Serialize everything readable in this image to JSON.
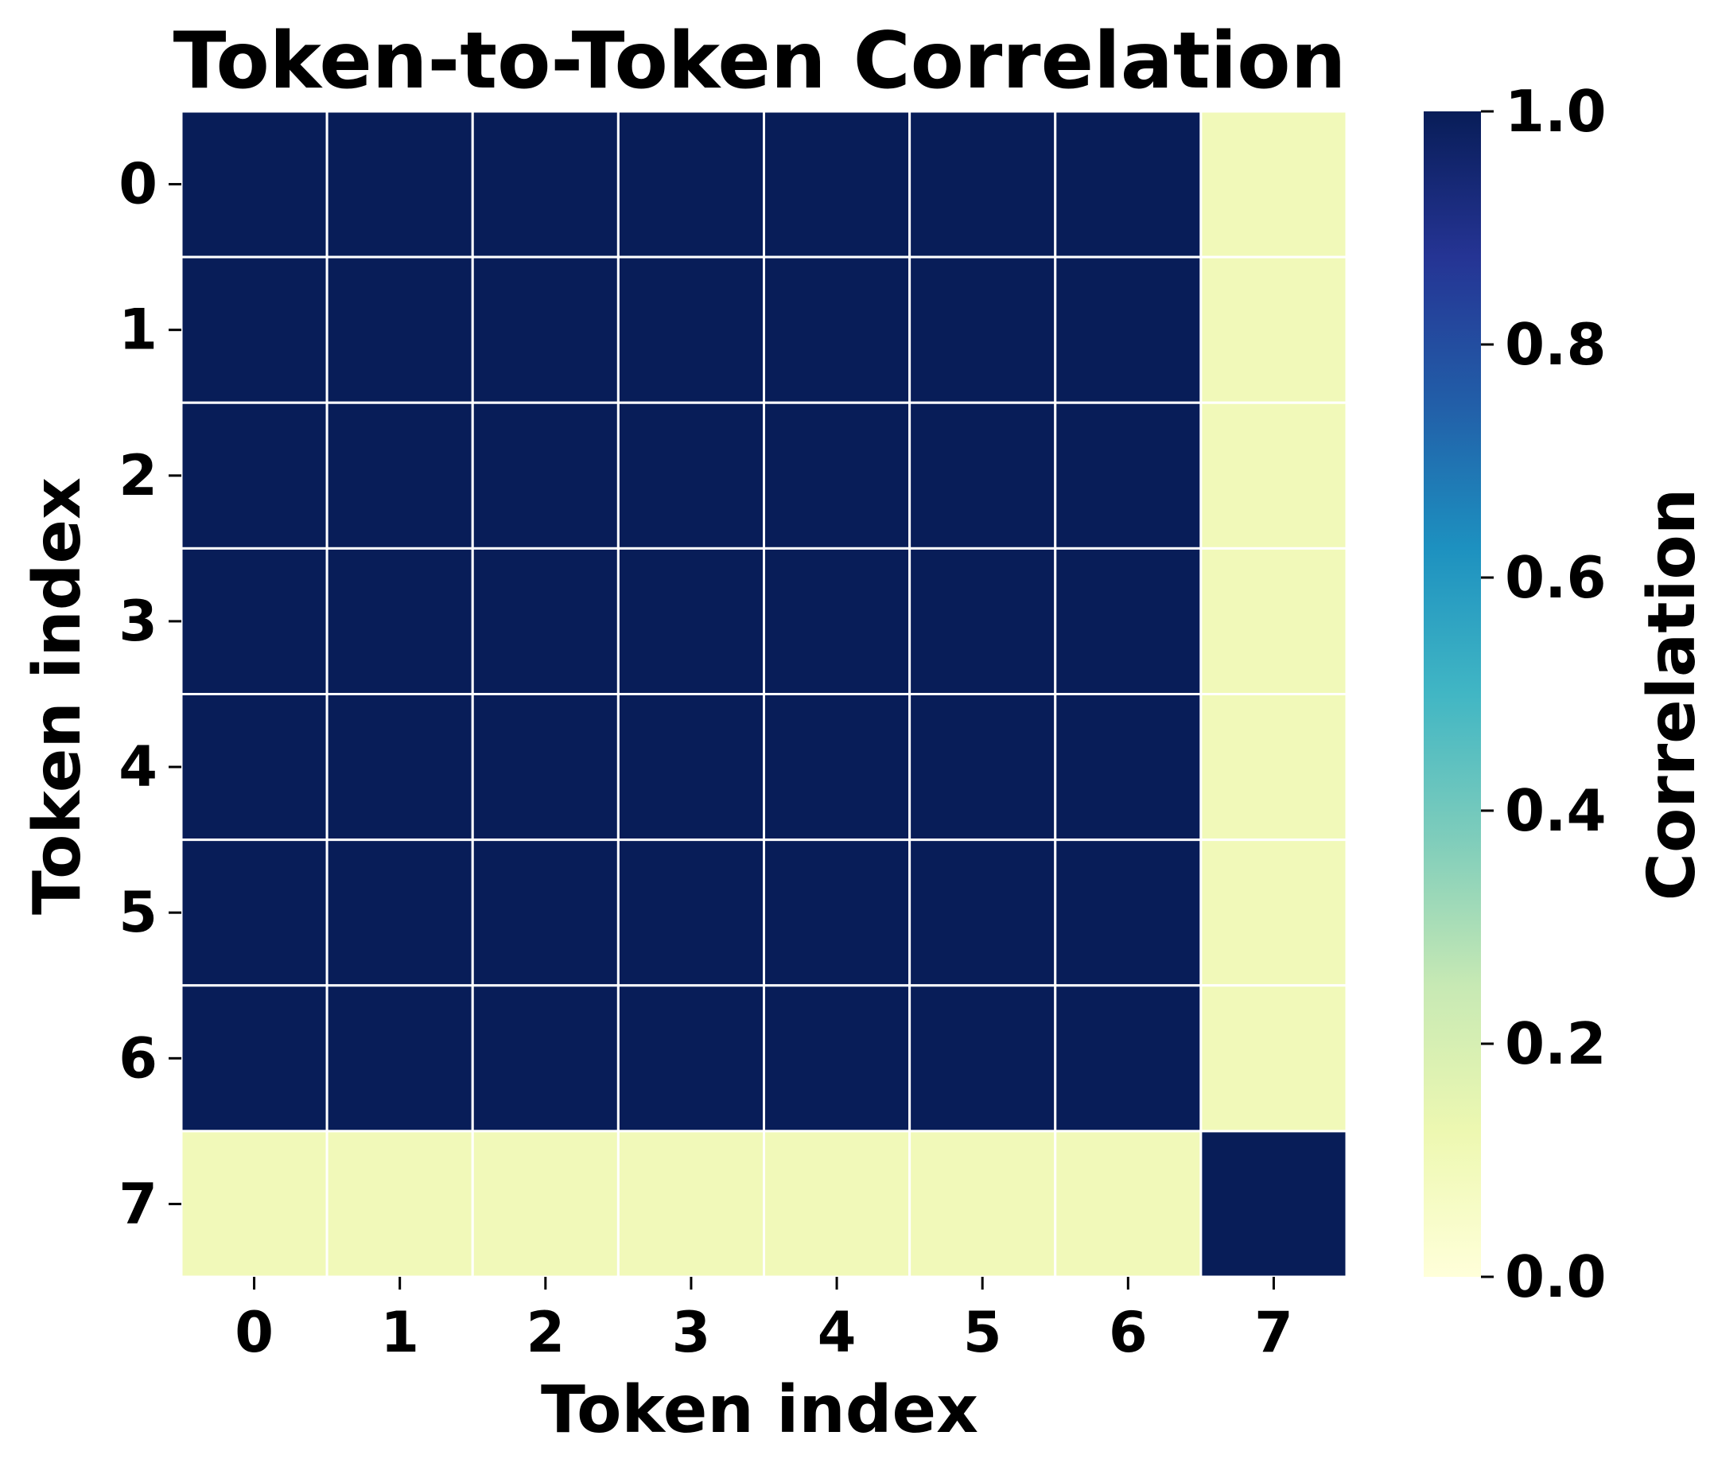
{
  "chart_data": {
    "type": "heatmap",
    "title": "Token-to-Token Correlation",
    "xlabel": "Token index",
    "ylabel": "Token index",
    "x_categories": [
      "0",
      "1",
      "2",
      "3",
      "4",
      "5",
      "6",
      "7"
    ],
    "y_categories": [
      "0",
      "1",
      "2",
      "3",
      "4",
      "5",
      "6",
      "7"
    ],
    "values": [
      [
        1.0,
        1.0,
        1.0,
        1.0,
        1.0,
        1.0,
        1.0,
        0.1
      ],
      [
        1.0,
        1.0,
        1.0,
        1.0,
        1.0,
        1.0,
        1.0,
        0.1
      ],
      [
        1.0,
        1.0,
        1.0,
        1.0,
        1.0,
        1.0,
        1.0,
        0.1
      ],
      [
        1.0,
        1.0,
        1.0,
        1.0,
        1.0,
        1.0,
        1.0,
        0.1
      ],
      [
        1.0,
        1.0,
        1.0,
        1.0,
        1.0,
        1.0,
        1.0,
        0.1
      ],
      [
        1.0,
        1.0,
        1.0,
        1.0,
        1.0,
        1.0,
        1.0,
        0.1
      ],
      [
        1.0,
        1.0,
        1.0,
        1.0,
        1.0,
        1.0,
        1.0,
        0.1
      ],
      [
        0.1,
        0.1,
        0.1,
        0.1,
        0.1,
        0.1,
        0.1,
        1.0
      ]
    ],
    "colorbar": {
      "label": "Correlation",
      "range": [
        0.0,
        1.0
      ],
      "ticks": [
        "0.0",
        "0.2",
        "0.4",
        "0.6",
        "0.8",
        "1.0"
      ],
      "colormap": "YlGnBu",
      "colors": [
        "#ffffd9",
        "#edf8b1",
        "#c7e9b4",
        "#7fcdbb",
        "#41b6c4",
        "#1d91c0",
        "#225ea8",
        "#253494",
        "#081d58"
      ]
    },
    "grid_line_color": "#ffffff"
  }
}
